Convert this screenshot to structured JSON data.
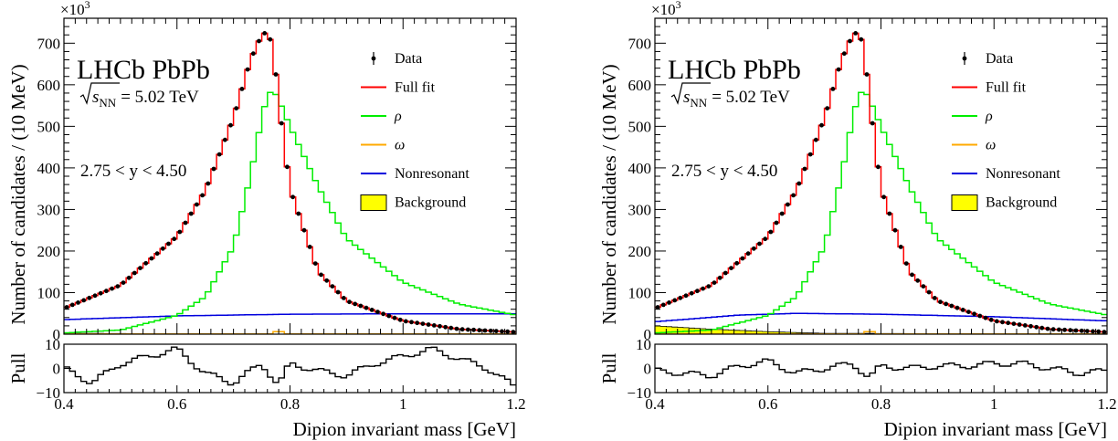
{
  "chart_data": [
    {
      "type": "histogram-fit",
      "experiment_label": "LHCb PbPb",
      "energy_label": "= 5.02 TeV",
      "energy_symbol": "s",
      "energy_subscript": "NN",
      "rapidity_label": "2.75 < y < 4.50",
      "xlabel": "Dipion invariant mass [GeV]",
      "ylabel": "Number of candidates / (10 MeV)",
      "y_multiplier": "×10",
      "y_multiplier_exp": "3",
      "pull_label": "Pull",
      "xlim": [
        0.4,
        1.2
      ],
      "ylim": [
        0,
        760
      ],
      "pull_ylim": [
        -10,
        10
      ],
      "x_ticks": [
        "0.4",
        "0.6",
        "0.8",
        "1",
        "1.2"
      ],
      "y_ticks": [
        "0",
        "100",
        "200",
        "300",
        "400",
        "500",
        "600",
        "700"
      ],
      "pull_ticks": [
        "10",
        "0",
        "−10"
      ],
      "legend": [
        {
          "label": "Data",
          "color": "#000000",
          "kind": "marker"
        },
        {
          "label": "Full fit",
          "color": "#ff0000",
          "kind": "line"
        },
        {
          "label": "ρ",
          "color": "#00ee00",
          "kind": "line"
        },
        {
          "label": "ω",
          "color": "#ffaa00",
          "kind": "line"
        },
        {
          "label": "Nonresonant",
          "color": "#0000dd",
          "kind": "line"
        },
        {
          "label": "Background",
          "color": "#ffff00",
          "kind": "box"
        }
      ],
      "data_anchor_x": [
        0.4,
        0.5,
        0.6,
        0.65,
        0.7,
        0.73,
        0.75,
        0.76,
        0.77,
        0.78,
        0.8,
        0.85,
        0.9,
        1.0,
        1.1,
        1.2
      ],
      "data_anchor_y": [
        62,
        118,
        235,
        345,
        520,
        660,
        720,
        728,
        690,
        560,
        350,
        150,
        80,
        32,
        12,
        5
      ],
      "rho_anchor_x": [
        0.4,
        0.5,
        0.6,
        0.65,
        0.7,
        0.73,
        0.75,
        0.76,
        0.77,
        0.78,
        0.8,
        0.85,
        0.9,
        1.0,
        1.1,
        1.2
      ],
      "rho_anchor_y": [
        3,
        10,
        45,
        90,
        210,
        380,
        520,
        575,
        588,
        565,
        500,
        355,
        230,
        125,
        72,
        46
      ],
      "nonres_anchor_x": [
        0.4,
        0.6,
        0.8,
        1.0,
        1.2
      ],
      "nonres_anchor_y": [
        35,
        44,
        48,
        49,
        49
      ],
      "bkg_anchor_x": [
        0.4,
        0.6,
        0.8,
        1.2
      ],
      "bkg_anchor_y": [
        2,
        1,
        0,
        0
      ],
      "pull_anchor_x": [
        0.4,
        0.45,
        0.5,
        0.55,
        0.6,
        0.65,
        0.7,
        0.75,
        0.78,
        0.8,
        0.85,
        0.9,
        0.95,
        1.0,
        1.05,
        1.1,
        1.15,
        1.2
      ],
      "pull_anchor_y": [
        0,
        -6,
        2,
        5,
        8,
        -2,
        -6,
        2,
        -7,
        2,
        -1,
        -3,
        2,
        5,
        8,
        4,
        0,
        -8
      ]
    },
    {
      "type": "histogram-fit",
      "experiment_label": "LHCb PbPb",
      "energy_label": "= 5.02 TeV",
      "energy_symbol": "s",
      "energy_subscript": "NN",
      "rapidity_label": "2.75 < y < 4.50",
      "xlabel": "Dipion invariant mass [GeV]",
      "ylabel": "Number of candidates / (10 MeV)",
      "y_multiplier": "×10",
      "y_multiplier_exp": "3",
      "pull_label": "Pull",
      "xlim": [
        0.4,
        1.2
      ],
      "ylim": [
        0,
        760
      ],
      "pull_ylim": [
        -10,
        10
      ],
      "x_ticks": [
        "0.4",
        "0.6",
        "0.8",
        "1",
        "1.2"
      ],
      "y_ticks": [
        "0",
        "100",
        "200",
        "300",
        "400",
        "500",
        "600",
        "700"
      ],
      "pull_ticks": [
        "10",
        "0",
        "−10"
      ],
      "legend": [
        {
          "label": "Data",
          "color": "#000000",
          "kind": "marker"
        },
        {
          "label": "Full fit",
          "color": "#ff0000",
          "kind": "line"
        },
        {
          "label": "ρ",
          "color": "#00ee00",
          "kind": "line"
        },
        {
          "label": "ω",
          "color": "#ffaa00",
          "kind": "line"
        },
        {
          "label": "Nonresonant",
          "color": "#0000dd",
          "kind": "line"
        },
        {
          "label": "Background",
          "color": "#ffff00",
          "kind": "box"
        }
      ],
      "data_anchor_x": [
        0.4,
        0.5,
        0.6,
        0.65,
        0.7,
        0.73,
        0.75,
        0.76,
        0.77,
        0.78,
        0.8,
        0.85,
        0.9,
        1.0,
        1.1,
        1.2
      ],
      "data_anchor_y": [
        62,
        118,
        235,
        345,
        520,
        660,
        720,
        728,
        690,
        560,
        350,
        150,
        80,
        32,
        12,
        5
      ],
      "rho_anchor_x": [
        0.4,
        0.5,
        0.6,
        0.65,
        0.7,
        0.73,
        0.75,
        0.76,
        0.77,
        0.78,
        0.8,
        0.85,
        0.9,
        1.0,
        1.1,
        1.2
      ],
      "rho_anchor_y": [
        3,
        10,
        45,
        90,
        210,
        380,
        520,
        575,
        588,
        565,
        500,
        355,
        230,
        125,
        72,
        46
      ],
      "nonres_anchor_x": [
        0.4,
        0.55,
        0.65,
        0.8,
        1.0,
        1.2
      ],
      "nonres_anchor_y": [
        30,
        46,
        50,
        48,
        42,
        32
      ],
      "bkg_anchor_x": [
        0.4,
        0.5,
        0.6,
        0.7,
        1.2
      ],
      "bkg_anchor_y": [
        20,
        12,
        6,
        2,
        0
      ],
      "pull_anchor_x": [
        0.4,
        0.45,
        0.5,
        0.55,
        0.6,
        0.65,
        0.7,
        0.75,
        0.78,
        0.8,
        0.85,
        0.9,
        0.95,
        1.0,
        1.05,
        1.1,
        1.15,
        1.2
      ],
      "pull_anchor_y": [
        -1,
        -2,
        -3,
        1,
        3,
        -2,
        0,
        2,
        -4,
        1,
        0,
        1,
        1,
        2,
        2,
        0,
        -2,
        -1
      ]
    }
  ]
}
